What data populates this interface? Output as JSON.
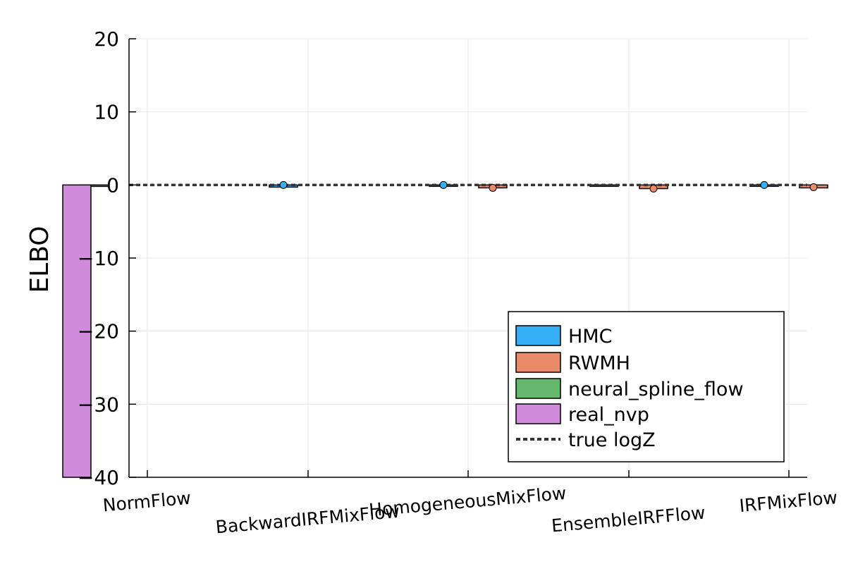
{
  "chart_data": {
    "type": "bar",
    "title": "",
    "xlabel": "",
    "ylabel": "ELBO",
    "ylim": [
      -40,
      20
    ],
    "yticks": [
      20,
      10,
      0,
      -10,
      -20,
      -30,
      -40
    ],
    "ytick_labels": [
      "20",
      "10",
      "0",
      "−10",
      "−20",
      "−30",
      "−40"
    ],
    "grid": true,
    "legend_position": "bottom-right",
    "categories": [
      "NormFlow",
      "BackwardIRFMixFlow",
      "HomogeneousMixFlow",
      "EnsembleIRFFlow",
      "IRFMixFlow"
    ],
    "series": [
      {
        "name": "HMC",
        "color": "#35b0f6",
        "values": [
          null,
          -0.3,
          0.0,
          0.0,
          0.0
        ],
        "markers": [
          null,
          0.0,
          0.0,
          null,
          0.0
        ]
      },
      {
        "name": "RWMH",
        "color": "#e98a68",
        "values": [
          null,
          null,
          -0.4,
          -0.5,
          -0.4
        ],
        "markers": [
          null,
          null,
          -0.4,
          -0.5,
          -0.3
        ]
      },
      {
        "name": "neural_spline_flow",
        "color": "#64b76b",
        "values": [
          -0.2,
          null,
          null,
          null,
          null
        ],
        "markers": [
          null,
          null,
          null,
          null,
          null
        ]
      },
      {
        "name": "real_nvp",
        "color": "#d18bdc",
        "values": [
          -40,
          null,
          null,
          null,
          null
        ],
        "markers": [
          null,
          null,
          null,
          null,
          null
        ]
      }
    ],
    "reference_line": {
      "name": "true logZ",
      "value": 0,
      "color": "#333333",
      "style": "dashed"
    }
  }
}
